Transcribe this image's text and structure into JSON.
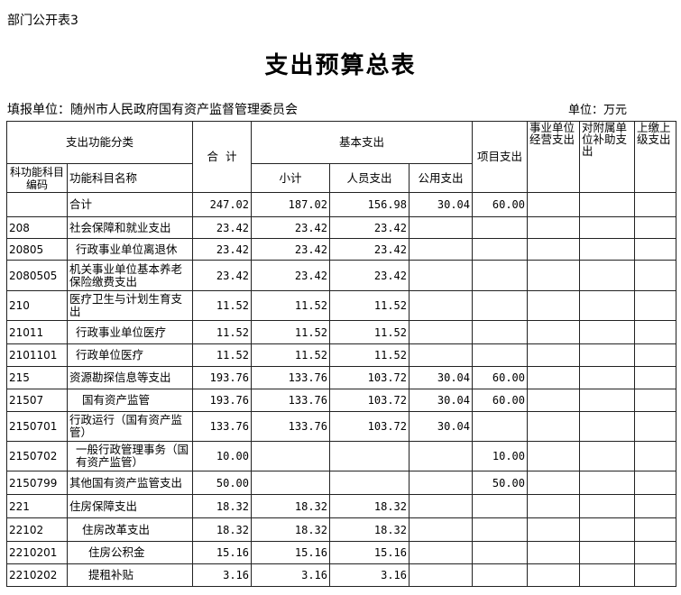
{
  "form_tag": "部门公开表3",
  "title": "支出预算总表",
  "reporting_unit": "填报单位：随州市人民政府国有资产监督管理委员会",
  "unit": "单位：万元",
  "headers": {
    "func_class": "支出功能分类",
    "total": "合  计",
    "basic": "基本支出",
    "project": "项目支出",
    "business": "事业单位经营支出",
    "subsidiary": "对附属单位补助支出",
    "upper": "上缴上级支出",
    "code": "科功能科目编码",
    "name": "功能科目名称",
    "subtotal": "小计",
    "personnel": "人员支出",
    "public": "公用支出"
  },
  "rows": [
    {
      "code": "",
      "name": "合计",
      "total": "247.02",
      "subtotal": "187.02",
      "personnel": "156.98",
      "public": "30.04",
      "project": "60.00",
      "indent": 0
    },
    {
      "code": "208",
      "name": "社会保障和就业支出",
      "total": "23.42",
      "subtotal": "23.42",
      "personnel": "23.42",
      "public": "",
      "project": "",
      "indent": 0
    },
    {
      "code": "20805",
      "name": "行政事业单位离退休",
      "total": "23.42",
      "subtotal": "23.42",
      "personnel": "23.42",
      "public": "",
      "project": "",
      "indent": 1
    },
    {
      "code": "2080505",
      "name": "机关事业单位基本养老保险缴费支出",
      "total": "23.42",
      "subtotal": "23.42",
      "personnel": "23.42",
      "public": "",
      "project": "",
      "indent": 0
    },
    {
      "code": "210",
      "name": "医疗卫生与计划生育支出",
      "total": "11.52",
      "subtotal": "11.52",
      "personnel": "11.52",
      "public": "",
      "project": "",
      "indent": 0
    },
    {
      "code": "21011",
      "name": "行政事业单位医疗",
      "total": "11.52",
      "subtotal": "11.52",
      "personnel": "11.52",
      "public": "",
      "project": "",
      "indent": 1
    },
    {
      "code": "2101101",
      "name": "行政单位医疗",
      "total": "11.52",
      "subtotal": "11.52",
      "personnel": "11.52",
      "public": "",
      "project": "",
      "indent": 1
    },
    {
      "code": "215",
      "name": "资源勘探信息等支出",
      "total": "193.76",
      "subtotal": "133.76",
      "personnel": "103.72",
      "public": "30.04",
      "project": "60.00",
      "indent": 0
    },
    {
      "code": "21507",
      "name": "国有资产监管",
      "total": "193.76",
      "subtotal": "133.76",
      "personnel": "103.72",
      "public": "30.04",
      "project": "60.00",
      "indent": 2
    },
    {
      "code": "2150701",
      "name": "行政运行（国有资产监管）",
      "total": "133.76",
      "subtotal": "133.76",
      "personnel": "103.72",
      "public": "30.04",
      "project": "",
      "indent": 0
    },
    {
      "code": "2150702",
      "name": "一般行政管理事务（国有资产监管）",
      "total": "10.00",
      "subtotal": "",
      "personnel": "",
      "public": "",
      "project": "10.00",
      "indent": 1
    },
    {
      "code": "2150799",
      "name": "其他国有资产监管支出",
      "total": "50.00",
      "subtotal": "",
      "personnel": "",
      "public": "",
      "project": "50.00",
      "indent": 0
    },
    {
      "code": "221",
      "name": "住房保障支出",
      "total": "18.32",
      "subtotal": "18.32",
      "personnel": "18.32",
      "public": "",
      "project": "",
      "indent": 0
    },
    {
      "code": "22102",
      "name": "住房改革支出",
      "total": "18.32",
      "subtotal": "18.32",
      "personnel": "18.32",
      "public": "",
      "project": "",
      "indent": 2
    },
    {
      "code": "2210201",
      "name": "住房公积金",
      "total": "15.16",
      "subtotal": "15.16",
      "personnel": "15.16",
      "public": "",
      "project": "",
      "indent": 3
    },
    {
      "code": "2210202",
      "name": "提租补贴",
      "total": "3.16",
      "subtotal": "3.16",
      "personnel": "3.16",
      "public": "",
      "project": "",
      "indent": 3
    }
  ]
}
